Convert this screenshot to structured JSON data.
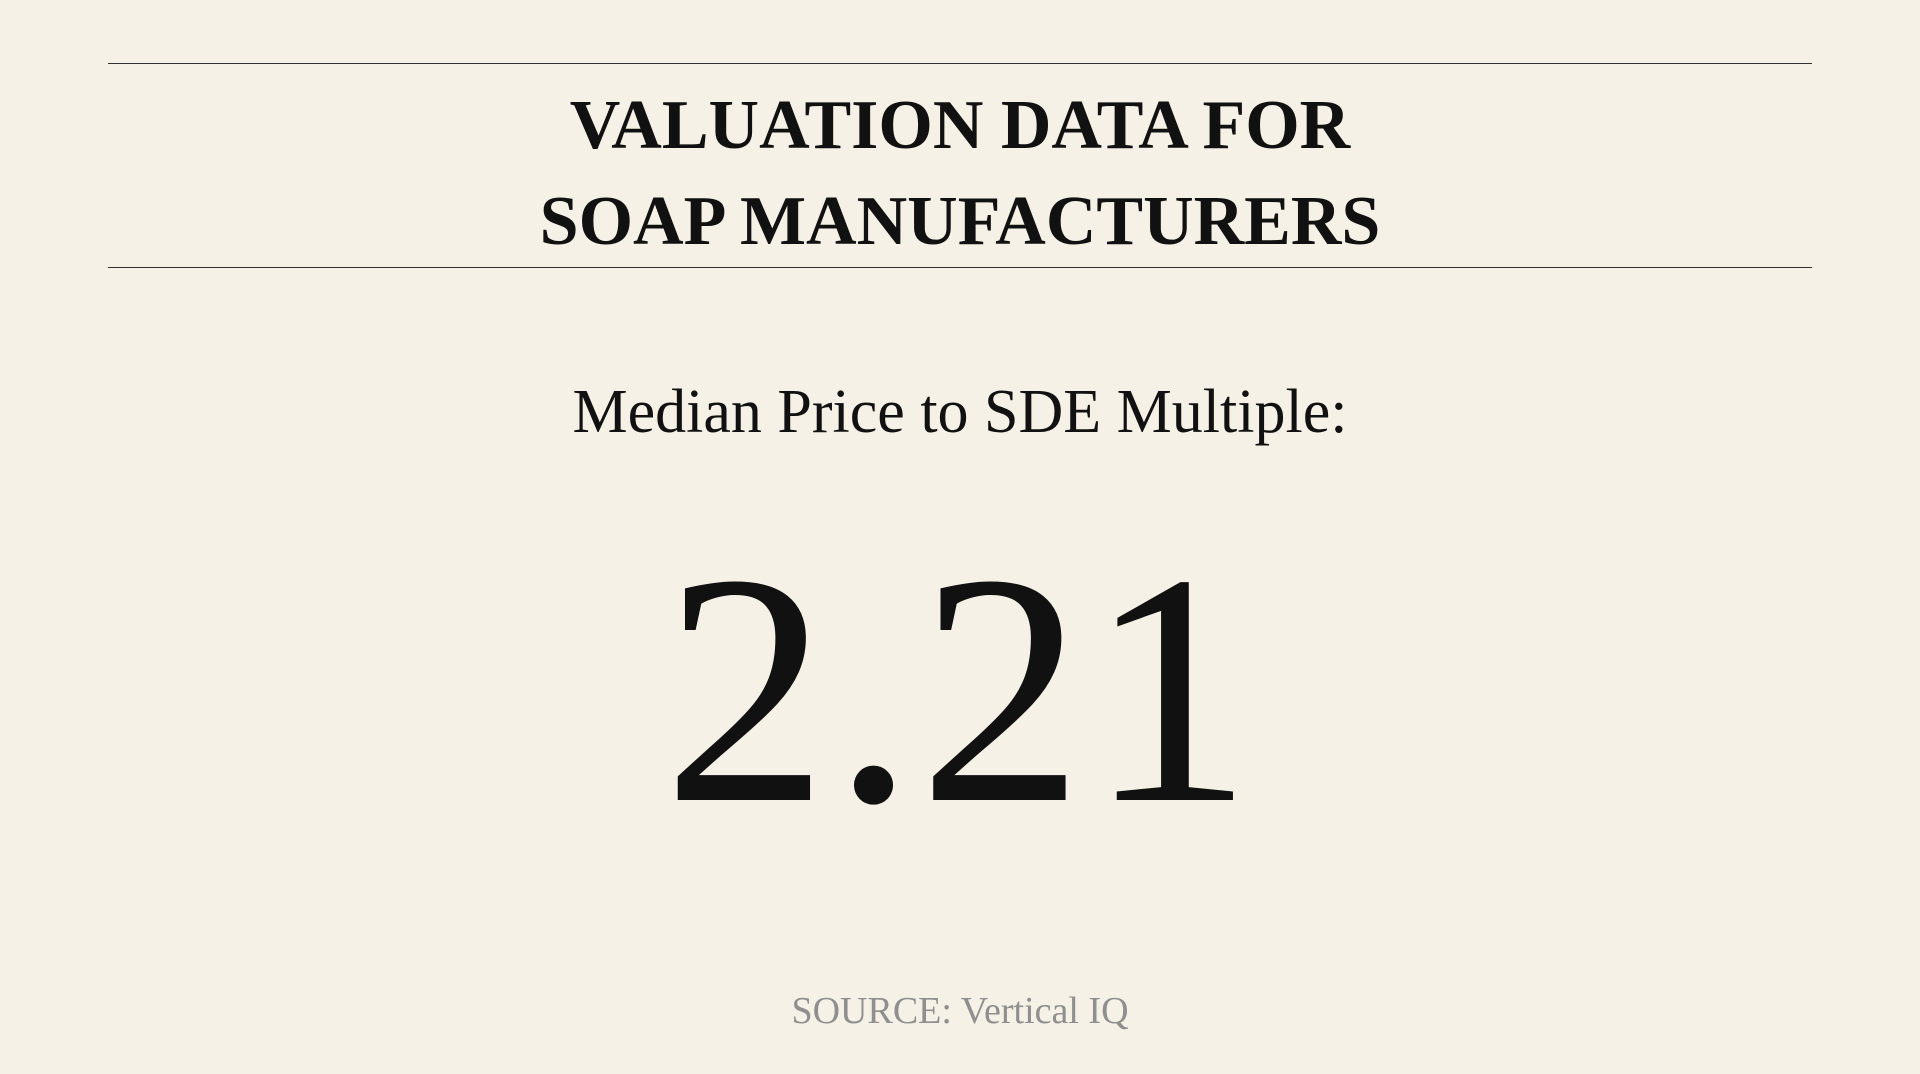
{
  "header": {
    "title_line1": "VALUATION DATA FOR",
    "title_line2": "SOAP MANUFACTURERS"
  },
  "metric": {
    "label": "Median Price to SDE Multiple:",
    "value": "2.21"
  },
  "footer": {
    "source": "SOURCE: Vertical IQ"
  },
  "colors": {
    "background": "#f6f1e6",
    "text": "#111111",
    "source_text": "#8f8f8f",
    "rule": "#333333"
  }
}
